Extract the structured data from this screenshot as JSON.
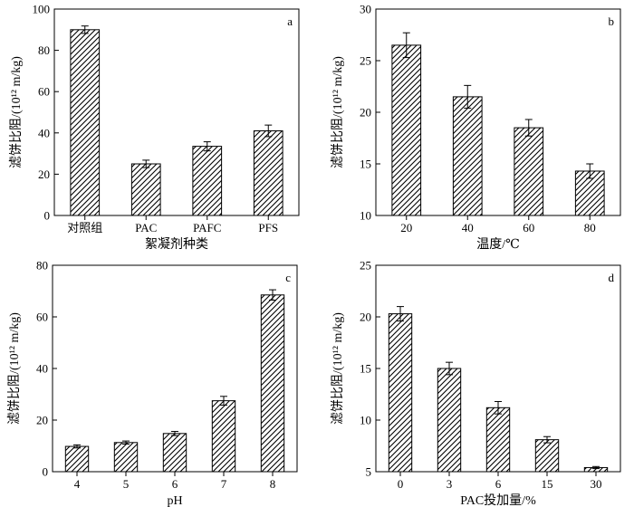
{
  "chart_data": [
    {
      "type": "bar",
      "panel_label": "a",
      "categories": [
        "对照组",
        "PAC",
        "PAFC",
        "PFS"
      ],
      "values": [
        90,
        25,
        33.5,
        41
      ],
      "errors": [
        1.8,
        1.8,
        2.2,
        2.8
      ],
      "xlabel": "絮凝剂种类",
      "ylabel": "滤饼比阻/(10¹² m/kg)",
      "ylim": [
        0,
        100
      ],
      "yticks": [
        0,
        20,
        40,
        60,
        80,
        100
      ],
      "bar_fill": "diagonal-hatch"
    },
    {
      "type": "bar",
      "panel_label": "b",
      "categories": [
        "20",
        "40",
        "60",
        "80"
      ],
      "values": [
        26.5,
        21.5,
        18.5,
        14.3
      ],
      "errors": [
        1.2,
        1.1,
        0.8,
        0.7
      ],
      "xlabel": "温度/℃",
      "ylabel": "滤饼比阻/(10¹² m/kg)",
      "ylim": [
        10,
        30
      ],
      "yticks": [
        10,
        15,
        20,
        25,
        30
      ],
      "bar_fill": "diagonal-hatch"
    },
    {
      "type": "bar",
      "panel_label": "c",
      "categories": [
        "4",
        "5",
        "6",
        "7",
        "8"
      ],
      "values": [
        9.8,
        11.3,
        14.8,
        27.5,
        68.5
      ],
      "errors": [
        0.6,
        0.6,
        0.8,
        1.7,
        2.0
      ],
      "xlabel": "pH",
      "ylabel": "滤饼比阻/(10¹² m/kg)",
      "ylim": [
        0,
        80
      ],
      "yticks": [
        0,
        20,
        40,
        60,
        80
      ],
      "bar_fill": "diagonal-hatch"
    },
    {
      "type": "bar",
      "panel_label": "d",
      "categories": [
        "0",
        "3",
        "6",
        "15",
        "30"
      ],
      "values": [
        20.3,
        15,
        11.2,
        8.1,
        5.4
      ],
      "errors": [
        0.7,
        0.6,
        0.6,
        0.3,
        0.1
      ],
      "xlabel": "PAC投加量/%",
      "ylabel": "滤饼比阻/(10¹² m/kg)",
      "ylim": [
        5,
        25
      ],
      "yticks": [
        5,
        10,
        15,
        20,
        25
      ],
      "bar_fill": "diagonal-hatch"
    }
  ]
}
